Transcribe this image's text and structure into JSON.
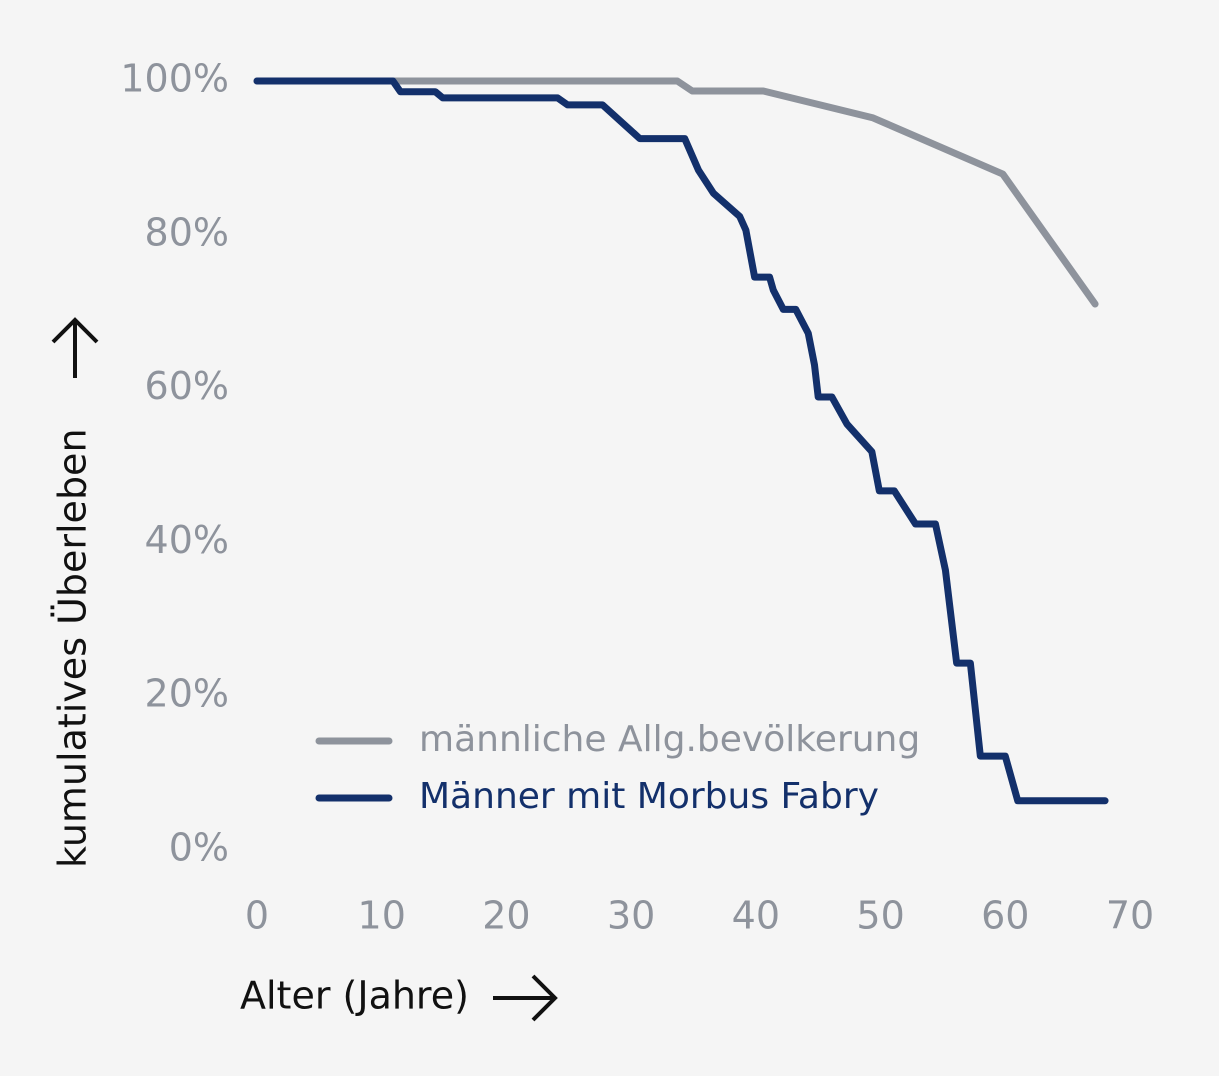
{
  "chart_data": {
    "type": "line",
    "xlabel": "Alter (Jahre)",
    "ylabel": "kumulatives Überleben",
    "xlim": [
      0,
      70
    ],
    "xticks": [
      0,
      10,
      20,
      30,
      40,
      50,
      60,
      70
    ],
    "ylim": [
      0,
      100
    ],
    "yticks": [
      {
        "value": 0,
        "label": "0%"
      },
      {
        "value": 20,
        "label": "20%"
      },
      {
        "value": 40,
        "label": "40%"
      },
      {
        "value": 60,
        "label": "60%"
      },
      {
        "value": 80,
        "label": "80%"
      },
      {
        "value": 100,
        "label": "100%"
      }
    ],
    "grid": false,
    "legend": "lower left",
    "series": [
      {
        "name": "männliche Allg.bevölkerung",
        "color": "#8e939c",
        "x": [
          0,
          33.7,
          34.9,
          40.6,
          49.4,
          59.8,
          67.2
        ],
        "values": [
          100,
          100,
          98.7,
          98.7,
          95.2,
          87.9,
          71
        ]
      },
      {
        "name": "Männer mit Morbus Fabry",
        "color": "#13306b",
        "x": [
          0,
          10.9,
          11.5,
          14.3,
          14.9,
          24.1,
          24.9,
          27.7,
          30.7,
          34.3,
          35.4,
          36.6,
          38.7,
          39.2,
          39.9,
          41.1,
          41.4,
          42.2,
          43.2,
          44.2,
          44.7,
          45.0,
          46.1,
          47.3,
          49.3,
          49.9,
          51.1,
          52.8,
          54.4,
          55.2,
          56.1,
          57.2,
          58.0,
          60.0,
          61.0,
          68.0
        ],
        "values": [
          100,
          100,
          98.6,
          98.6,
          97.8,
          97.8,
          96.9,
          96.9,
          92.5,
          92.5,
          88.4,
          85.4,
          82.4,
          80.6,
          74.5,
          74.5,
          72.8,
          70.3,
          70.3,
          67.2,
          63.1,
          58.9,
          58.9,
          55.4,
          51.8,
          46.7,
          46.7,
          42.4,
          42.4,
          36.4,
          24.3,
          24.3,
          12.2,
          12.2,
          6.4,
          6.4
        ]
      }
    ]
  }
}
